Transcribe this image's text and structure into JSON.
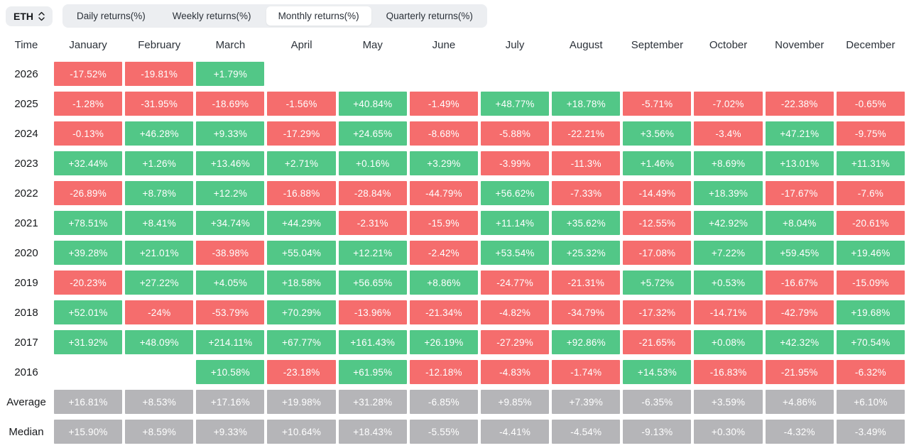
{
  "controls": {
    "symbol": "ETH",
    "tabs": [
      {
        "label": "Daily returns(%)",
        "active": false
      },
      {
        "label": "Weekly returns(%)",
        "active": false
      },
      {
        "label": "Monthly returns(%)",
        "active": true
      },
      {
        "label": "Quarterly returns(%)",
        "active": false
      }
    ]
  },
  "colors": {
    "positive": "#52c787",
    "negative": "#f56d6d",
    "summary": "#b5b5b8"
  },
  "table": {
    "time_header": "Time",
    "months": [
      "January",
      "February",
      "March",
      "April",
      "May",
      "June",
      "July",
      "August",
      "September",
      "October",
      "November",
      "December"
    ],
    "rows": [
      {
        "label": "2026",
        "type": "year",
        "values": [
          "-17.52%",
          "-19.81%",
          "+1.79%",
          "",
          "",
          "",
          "",
          "",
          "",
          "",
          "",
          ""
        ]
      },
      {
        "label": "2025",
        "type": "year",
        "values": [
          "-1.28%",
          "-31.95%",
          "-18.69%",
          "-1.56%",
          "+40.84%",
          "-1.49%",
          "+48.77%",
          "+18.78%",
          "-5.71%",
          "-7.02%",
          "-22.38%",
          "-0.65%"
        ]
      },
      {
        "label": "2024",
        "type": "year",
        "values": [
          "-0.13%",
          "+46.28%",
          "+9.33%",
          "-17.29%",
          "+24.65%",
          "-8.68%",
          "-5.88%",
          "-22.21%",
          "+3.56%",
          "-3.4%",
          "+47.21%",
          "-9.75%"
        ]
      },
      {
        "label": "2023",
        "type": "year",
        "values": [
          "+32.44%",
          "+1.26%",
          "+13.46%",
          "+2.71%",
          "+0.16%",
          "+3.29%",
          "-3.99%",
          "-11.3%",
          "+1.46%",
          "+8.69%",
          "+13.01%",
          "+11.31%"
        ]
      },
      {
        "label": "2022",
        "type": "year",
        "values": [
          "-26.89%",
          "+8.78%",
          "+12.2%",
          "-16.88%",
          "-28.84%",
          "-44.79%",
          "+56.62%",
          "-7.33%",
          "-14.49%",
          "+18.39%",
          "-17.67%",
          "-7.6%"
        ]
      },
      {
        "label": "2021",
        "type": "year",
        "values": [
          "+78.51%",
          "+8.41%",
          "+34.74%",
          "+44.29%",
          "-2.31%",
          "-15.9%",
          "+11.14%",
          "+35.62%",
          "-12.55%",
          "+42.92%",
          "+8.04%",
          "-20.61%"
        ]
      },
      {
        "label": "2020",
        "type": "year",
        "values": [
          "+39.28%",
          "+21.01%",
          "-38.98%",
          "+55.04%",
          "+12.21%",
          "-2.42%",
          "+53.54%",
          "+25.32%",
          "-17.08%",
          "+7.22%",
          "+59.45%",
          "+19.46%"
        ]
      },
      {
        "label": "2019",
        "type": "year",
        "values": [
          "-20.23%",
          "+27.22%",
          "+4.05%",
          "+18.58%",
          "+56.65%",
          "+8.86%",
          "-24.77%",
          "-21.31%",
          "+5.72%",
          "+0.53%",
          "-16.67%",
          "-15.09%"
        ]
      },
      {
        "label": "2018",
        "type": "year",
        "values": [
          "+52.01%",
          "-24%",
          "-53.79%",
          "+70.29%",
          "-13.96%",
          "-21.34%",
          "-4.82%",
          "-34.79%",
          "-17.32%",
          "-14.71%",
          "-42.79%",
          "+19.68%"
        ]
      },
      {
        "label": "2017",
        "type": "year",
        "values": [
          "+31.92%",
          "+48.09%",
          "+214.11%",
          "+67.77%",
          "+161.43%",
          "+26.19%",
          "-27.29%",
          "+92.86%",
          "-21.65%",
          "+0.08%",
          "+42.32%",
          "+70.54%"
        ]
      },
      {
        "label": "2016",
        "type": "year",
        "values": [
          "",
          "",
          "+10.58%",
          "-23.18%",
          "+61.95%",
          "-12.18%",
          "-4.83%",
          "-1.74%",
          "+14.53%",
          "-16.83%",
          "-21.95%",
          "-6.32%"
        ]
      },
      {
        "label": "Average",
        "type": "summary",
        "values": [
          "+16.81%",
          "+8.53%",
          "+17.16%",
          "+19.98%",
          "+31.28%",
          "-6.85%",
          "+9.85%",
          "+7.39%",
          "-6.35%",
          "+3.59%",
          "+4.86%",
          "+6.10%"
        ]
      },
      {
        "label": "Median",
        "type": "summary",
        "values": [
          "+15.90%",
          "+8.59%",
          "+9.33%",
          "+10.64%",
          "+18.43%",
          "-5.55%",
          "-4.41%",
          "-4.54%",
          "-9.13%",
          "+0.30%",
          "-4.32%",
          "-3.49%"
        ]
      }
    ]
  }
}
